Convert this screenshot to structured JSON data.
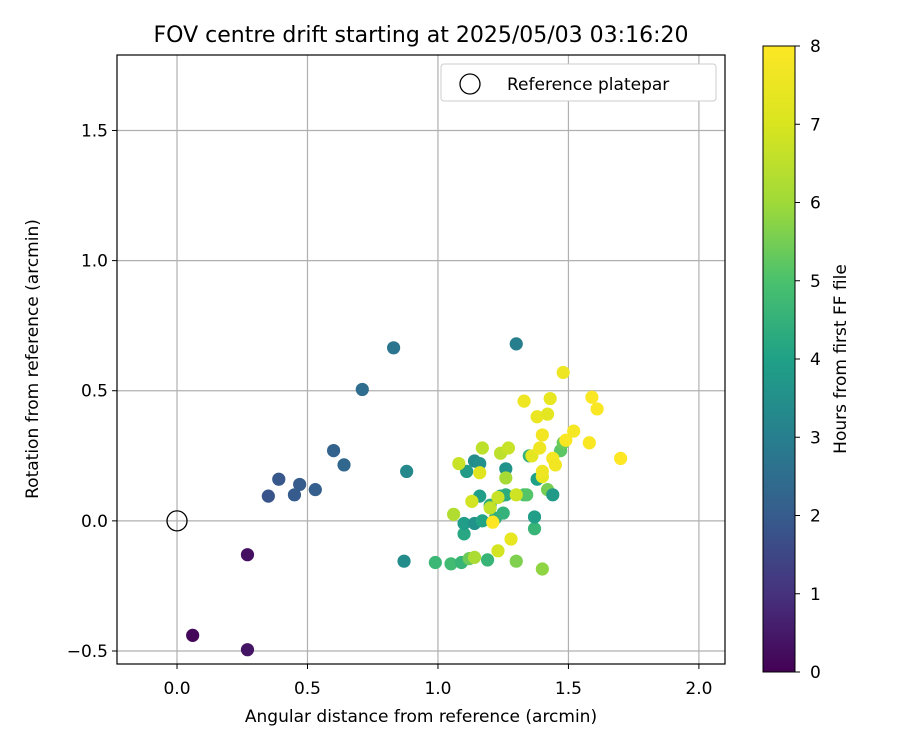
{
  "chart_data": {
    "type": "scatter",
    "title": "FOV centre drift starting at 2025/05/03 03:16:20",
    "xlabel": "Angular distance from reference (arcmin)",
    "ylabel": "Rotation from reference (arcmin)",
    "xlim": [
      -0.23,
      2.1
    ],
    "ylim": [
      -0.55,
      1.79
    ],
    "x_ticks": [
      0.0,
      0.5,
      1.0,
      1.5,
      2.0
    ],
    "x_tick_labels": [
      "0.0",
      "0.5",
      "1.0",
      "1.5",
      "2.0"
    ],
    "y_ticks": [
      -0.5,
      0.0,
      0.5,
      1.0,
      1.5
    ],
    "y_tick_labels": [
      "−0.5",
      "0.0",
      "0.5",
      "1.0",
      "1.5"
    ],
    "grid": true,
    "legend": {
      "placement": "top-right",
      "entries": [
        "Reference platepar"
      ]
    },
    "reference_point": {
      "x": 0.0,
      "y": 0.0,
      "label": "Reference platepar"
    },
    "colorbar": {
      "label": "Hours from first FF file",
      "range": [
        0,
        8
      ],
      "ticks": [
        0,
        1,
        2,
        3,
        4,
        5,
        6,
        7,
        8
      ],
      "tick_labels": [
        "0",
        "1",
        "2",
        "3",
        "4",
        "5",
        "6",
        "7",
        "8"
      ],
      "colormap": "viridis"
    },
    "series": [
      {
        "points": [
          {
            "x": 0.06,
            "y": -0.44,
            "h": 0.1
          },
          {
            "x": 0.27,
            "y": -0.13,
            "h": 0.3
          },
          {
            "x": 0.27,
            "y": -0.495,
            "h": 0.4
          },
          {
            "x": 0.35,
            "y": 0.095,
            "h": 1.8
          },
          {
            "x": 0.39,
            "y": 0.16,
            "h": 1.9
          },
          {
            "x": 0.45,
            "y": 0.1,
            "h": 2.0
          },
          {
            "x": 0.47,
            "y": 0.14,
            "h": 2.0
          },
          {
            "x": 0.53,
            "y": 0.12,
            "h": 2.1
          },
          {
            "x": 0.6,
            "y": 0.27,
            "h": 2.2
          },
          {
            "x": 0.64,
            "y": 0.215,
            "h": 2.3
          },
          {
            "x": 0.71,
            "y": 0.505,
            "h": 2.5
          },
          {
            "x": 0.83,
            "y": 0.665,
            "h": 2.7
          },
          {
            "x": 0.87,
            "y": -0.155,
            "h": 3.4
          },
          {
            "x": 0.88,
            "y": 0.19,
            "h": 3.3
          },
          {
            "x": 1.3,
            "y": 0.68,
            "h": 3.0
          },
          {
            "x": 0.99,
            "y": -0.16,
            "h": 4.7
          },
          {
            "x": 1.05,
            "y": -0.165,
            "h": 4.8
          },
          {
            "x": 1.09,
            "y": -0.16,
            "h": 4.6
          },
          {
            "x": 1.1,
            "y": -0.05,
            "h": 4.2
          },
          {
            "x": 1.1,
            "y": -0.01,
            "h": 3.9
          },
          {
            "x": 1.11,
            "y": 0.19,
            "h": 3.8
          },
          {
            "x": 1.12,
            "y": -0.145,
            "h": 5.4
          },
          {
            "x": 1.14,
            "y": 0.23,
            "h": 3.4
          },
          {
            "x": 1.14,
            "y": -0.01,
            "h": 3.6
          },
          {
            "x": 1.16,
            "y": 0.22,
            "h": 3.5
          },
          {
            "x": 1.16,
            "y": 0.095,
            "h": 3.9
          },
          {
            "x": 1.17,
            "y": 0.0,
            "h": 4.1
          },
          {
            "x": 1.19,
            "y": -0.15,
            "h": 4.6
          },
          {
            "x": 1.2,
            "y": 0.06,
            "h": 4.3
          },
          {
            "x": 1.22,
            "y": 0.01,
            "h": 4.4
          },
          {
            "x": 1.24,
            "y": 0.095,
            "h": 4.2
          },
          {
            "x": 1.25,
            "y": 0.03,
            "h": 4.5
          },
          {
            "x": 1.26,
            "y": 0.2,
            "h": 3.6
          },
          {
            "x": 1.26,
            "y": 0.1,
            "h": 4.3
          },
          {
            "x": 1.3,
            "y": -0.155,
            "h": 5.6
          },
          {
            "x": 1.33,
            "y": 0.1,
            "h": 4.9
          },
          {
            "x": 1.34,
            "y": 0.1,
            "h": 5.1
          },
          {
            "x": 1.35,
            "y": 0.25,
            "h": 4.5
          },
          {
            "x": 1.37,
            "y": -0.03,
            "h": 4.6
          },
          {
            "x": 1.37,
            "y": 0.015,
            "h": 3.9
          },
          {
            "x": 1.38,
            "y": 0.16,
            "h": 4.0
          },
          {
            "x": 1.4,
            "y": -0.185,
            "h": 5.8
          },
          {
            "x": 1.42,
            "y": 0.12,
            "h": 5.5
          },
          {
            "x": 1.44,
            "y": 0.1,
            "h": 3.8
          },
          {
            "x": 1.47,
            "y": 0.27,
            "h": 5.2
          },
          {
            "x": 1.48,
            "y": 0.3,
            "h": 5.4
          },
          {
            "x": 1.06,
            "y": 0.025,
            "h": 6.3
          },
          {
            "x": 1.08,
            "y": 0.22,
            "h": 6.7
          },
          {
            "x": 1.13,
            "y": 0.075,
            "h": 6.9
          },
          {
            "x": 1.14,
            "y": -0.14,
            "h": 6.2
          },
          {
            "x": 1.16,
            "y": 0.185,
            "h": 7.2
          },
          {
            "x": 1.17,
            "y": 0.28,
            "h": 6.5
          },
          {
            "x": 1.2,
            "y": 0.05,
            "h": 6.6
          },
          {
            "x": 1.23,
            "y": -0.115,
            "h": 6.9
          },
          {
            "x": 1.23,
            "y": 0.09,
            "h": 6.7
          },
          {
            "x": 1.24,
            "y": 0.26,
            "h": 6.5
          },
          {
            "x": 1.26,
            "y": 0.165,
            "h": 6.1
          },
          {
            "x": 1.27,
            "y": 0.28,
            "h": 6.7
          },
          {
            "x": 1.28,
            "y": -0.07,
            "h": 7.4
          },
          {
            "x": 1.3,
            "y": 0.1,
            "h": 6.8
          },
          {
            "x": 1.33,
            "y": 0.46,
            "h": 7.6
          },
          {
            "x": 1.36,
            "y": 0.25,
            "h": 7.3
          },
          {
            "x": 1.38,
            "y": 0.4,
            "h": 7.5
          },
          {
            "x": 1.39,
            "y": 0.28,
            "h": 7.6
          },
          {
            "x": 1.4,
            "y": 0.33,
            "h": 7.7
          },
          {
            "x": 1.4,
            "y": 0.17,
            "h": 7.4
          },
          {
            "x": 1.4,
            "y": 0.19,
            "h": 7.6
          },
          {
            "x": 1.42,
            "y": 0.41,
            "h": 7.3
          },
          {
            "x": 1.43,
            "y": 0.47,
            "h": 7.4
          },
          {
            "x": 1.44,
            "y": 0.24,
            "h": 7.8
          },
          {
            "x": 1.45,
            "y": 0.215,
            "h": 7.7
          },
          {
            "x": 1.48,
            "y": 0.57,
            "h": 7.6
          },
          {
            "x": 1.49,
            "y": 0.31,
            "h": 7.9
          },
          {
            "x": 1.52,
            "y": 0.345,
            "h": 7.8
          },
          {
            "x": 1.58,
            "y": 0.3,
            "h": 7.9
          },
          {
            "x": 1.59,
            "y": 0.475,
            "h": 7.9
          },
          {
            "x": 1.61,
            "y": 0.43,
            "h": 7.9
          },
          {
            "x": 1.7,
            "y": 0.24,
            "h": 8.0
          },
          {
            "x": 1.21,
            "y": -0.005,
            "h": 8.0
          }
        ]
      }
    ]
  }
}
